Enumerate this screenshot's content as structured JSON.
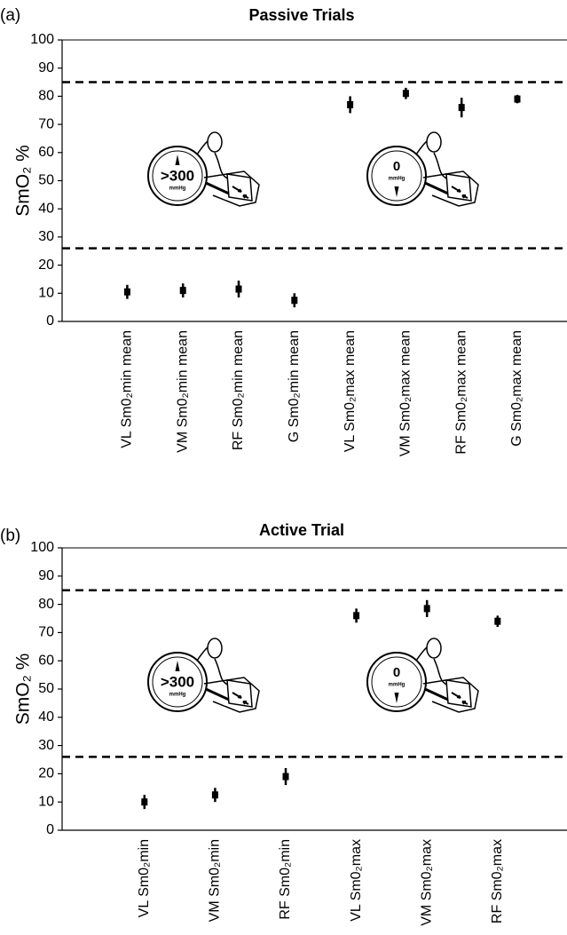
{
  "chart_data": [
    {
      "type": "errorbar",
      "panel": "(a)",
      "title": "Passive Trials",
      "y_label": "SmO₂ %",
      "categories": [
        "VL Sm0₂min mean",
        "VM Sm0₂min mean",
        "RF Sm0₂min mean",
        "G Sm0₂min mean",
        "VL Sm0₂max mean",
        "VM Sm0₂max mean",
        "RF Sm0₂max mean",
        "G Sm0₂max mean"
      ],
      "values": [
        10.5,
        11,
        11.5,
        7.5,
        77,
        81,
        76,
        79
      ],
      "errors": [
        2.5,
        2.5,
        3,
        2.5,
        3,
        2,
        3.5,
        1.5
      ],
      "color": "#000000",
      "ylim": [
        0,
        100
      ],
      "yticks": [
        0,
        10,
        20,
        30,
        40,
        50,
        60,
        70,
        80,
        90,
        100
      ],
      "reference_lines": [
        85,
        26
      ],
      "cuff_labels": [
        {
          "pressure": ">300",
          "unit": "mmHg"
        },
        {
          "pressure": "0",
          "unit": "mmHg"
        }
      ]
    },
    {
      "type": "errorbar",
      "panel": "(b)",
      "title": "Active Trial",
      "y_label": "SmO₂ %",
      "categories": [
        "VL Sm0₂min",
        "VM Sm0₂min",
        "RF Sm0₂min",
        "VL Sm0₂max",
        "VM Sm0₂max",
        "RF Sm0₂max"
      ],
      "values": [
        10,
        12.5,
        19,
        76,
        78.5,
        74
      ],
      "errors": [
        2.5,
        2.5,
        3,
        2.5,
        3,
        2
      ],
      "color": "#000000",
      "ylim": [
        0,
        100
      ],
      "yticks": [
        0,
        10,
        20,
        30,
        40,
        50,
        60,
        70,
        80,
        90,
        100
      ],
      "reference_lines": [
        85,
        26
      ],
      "cuff_labels": [
        {
          "pressure": ">300",
          "unit": "mmHg"
        },
        {
          "pressure": "0",
          "unit": "mmHg"
        }
      ]
    }
  ]
}
